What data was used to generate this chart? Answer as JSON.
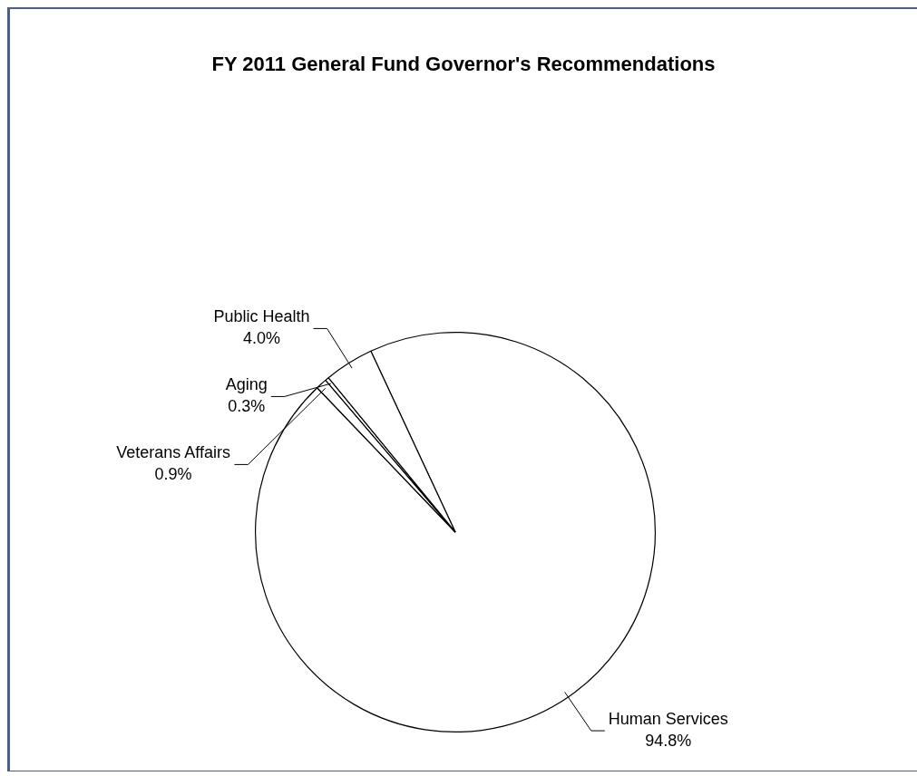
{
  "chart_data": {
    "type": "pie",
    "title": "FY 2011 General Fund Governor's Recommendations",
    "categories": [
      "Human Services",
      "Veterans Affairs",
      "Aging",
      "Public Health"
    ],
    "values": [
      94.8,
      0.9,
      0.3,
      4.0
    ],
    "colors": [
      "#ffffff",
      "#ffffff",
      "#ffffff",
      "#ffffff"
    ],
    "value_labels": [
      "94.8%",
      "0.9%",
      "0.3%",
      "4.0%"
    ],
    "legend": false
  }
}
